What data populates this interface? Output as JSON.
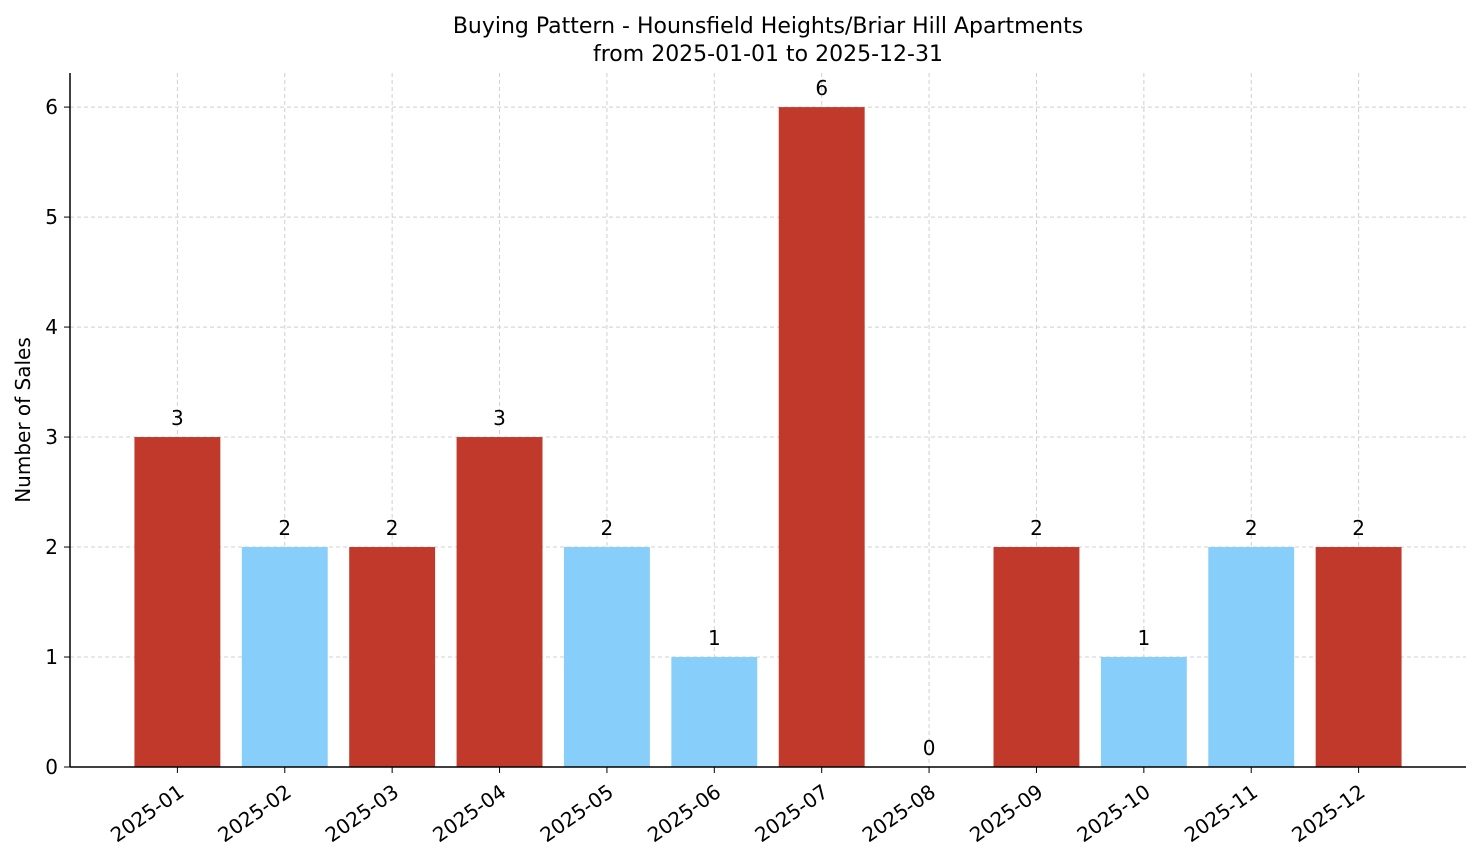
{
  "chart_data": {
    "type": "bar",
    "title": "Buying Pattern - Hounsfield Heights/Briar Hill Apartments",
    "subtitle": "from 2025-01-01 to 2025-12-31",
    "y_label": "Number of Sales",
    "categories": [
      "2025-01",
      "2025-02",
      "2025-03",
      "2025-04",
      "2025-05",
      "2025-06",
      "2025-07",
      "2025-08",
      "2025-09",
      "2025-10",
      "2025-11",
      "2025-12"
    ],
    "values": [
      3,
      2,
      2,
      3,
      2,
      1,
      6,
      0,
      2,
      1,
      2,
      2
    ],
    "colors": [
      "#c0392b",
      "#87cefa",
      "#c0392b",
      "#c0392b",
      "#87cefa",
      "#87cefa",
      "#c0392b",
      "#87cefa",
      "#c0392b",
      "#87cefa",
      "#87cefa",
      "#c0392b"
    ],
    "ylim": [
      0,
      6.31
    ],
    "yticks": [
      0,
      1,
      2,
      3,
      4,
      5,
      6
    ],
    "grid": true
  }
}
